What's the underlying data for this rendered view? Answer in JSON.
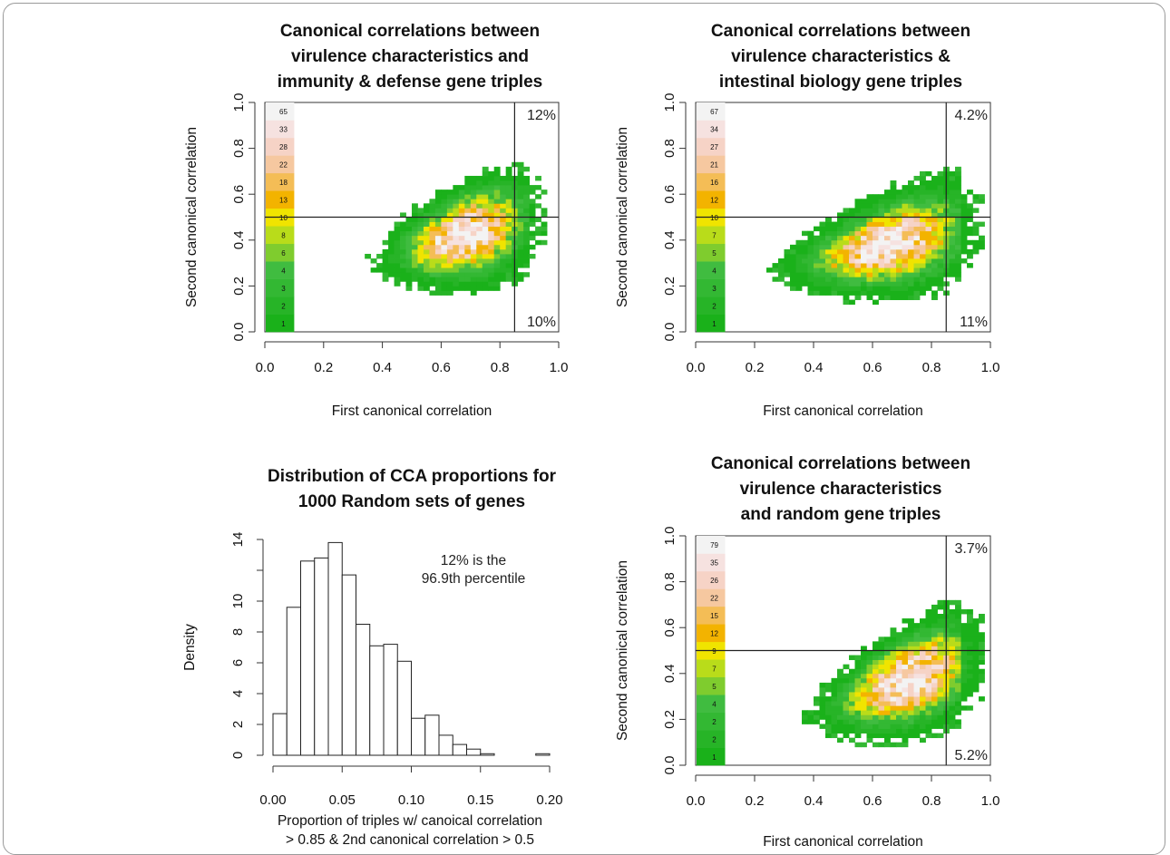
{
  "chart_data": [
    {
      "type": "heatmap",
      "title": [
        "Canonical correlations between",
        "virulence characteristics and",
        "immunity & defense gene triples"
      ],
      "xlabel": "First canonical correlation",
      "ylabel": "Second canonical correlation",
      "xlim": [
        0,
        1
      ],
      "ylim": [
        0,
        1
      ],
      "xticks": [
        "0.0",
        "0.2",
        "0.4",
        "0.6",
        "0.8",
        "1.0"
      ],
      "yticks": [
        "0.0",
        "0.2",
        "0.4",
        "0.6",
        "0.8",
        "1.0"
      ],
      "vline": 0.85,
      "hline": 0.5,
      "quadrant_upper_right": "12%",
      "quadrant_lower_right": "10%",
      "legend_counts": [
        "1",
        "2",
        "3",
        "4",
        "6",
        "8",
        "10",
        "13",
        "18",
        "22",
        "28",
        "33",
        "65"
      ],
      "density_center": [
        0.68,
        0.42
      ],
      "density_spread": [
        0.13,
        0.12
      ],
      "density_tilt": 0.35
    },
    {
      "type": "heatmap",
      "title": [
        "Canonical correlations between",
        "virulence characteristics &",
        "intestinal biology gene triples"
      ],
      "xlabel": "First canonical correlation",
      "ylabel": "Second canonical correlation",
      "xlim": [
        0,
        1
      ],
      "ylim": [
        0,
        1
      ],
      "xticks": [
        "0.0",
        "0.2",
        "0.4",
        "0.6",
        "0.8",
        "1.0"
      ],
      "yticks": [
        "0.0",
        "0.2",
        "0.4",
        "0.6",
        "0.8",
        "1.0"
      ],
      "vline": 0.85,
      "hline": 0.5,
      "quadrant_upper_right": "4.2%",
      "quadrant_lower_right": "11%",
      "legend_counts": [
        "1",
        "2",
        "3",
        "4",
        "5",
        "7",
        "10",
        "12",
        "16",
        "21",
        "27",
        "34",
        "67"
      ],
      "density_center": [
        0.65,
        0.38
      ],
      "density_spread": [
        0.16,
        0.12
      ],
      "density_tilt": 0.3
    },
    {
      "type": "bar",
      "title": [
        "Distribution of CCA proportions for",
        "1000 Random sets of genes"
      ],
      "xlabel": [
        "Proportion of triples w/ canoical correlation",
        "> 0.85 & 2nd canonical correlation > 0.5"
      ],
      "ylabel": "Density",
      "xlim": [
        0,
        0.2
      ],
      "ylim": [
        0,
        14
      ],
      "xticks": [
        "0.00",
        "0.05",
        "0.10",
        "0.15",
        "0.20"
      ],
      "yticks": [
        "0",
        "2",
        "4",
        "6",
        "8",
        "10",
        "14"
      ],
      "bin_width": 0.01,
      "bin_starts": [
        0.0,
        0.01,
        0.02,
        0.03,
        0.04,
        0.05,
        0.06,
        0.07,
        0.08,
        0.09,
        0.1,
        0.11,
        0.12,
        0.13,
        0.14,
        0.15,
        0.19
      ],
      "values": [
        2.7,
        9.6,
        12.6,
        12.8,
        13.8,
        11.7,
        8.5,
        7.1,
        7.2,
        6.1,
        2.4,
        2.6,
        1.3,
        0.7,
        0.4,
        0.1,
        0.1
      ],
      "annotation": [
        "12% is the",
        "96.9th percentile"
      ]
    },
    {
      "type": "heatmap",
      "title": [
        "Canonical correlations between",
        "virulence characteristics",
        "and random gene triples"
      ],
      "xlabel": "First canonical correlation",
      "ylabel": "Second canonical correlation",
      "xlim": [
        0,
        1
      ],
      "ylim": [
        0,
        1
      ],
      "xticks": [
        "0.0",
        "0.2",
        "0.4",
        "0.6",
        "0.8",
        "1.0"
      ],
      "yticks": [
        "0.0",
        "0.2",
        "0.4",
        "0.6",
        "0.8",
        "1.0"
      ],
      "vline": 0.85,
      "hline": 0.5,
      "quadrant_upper_right": "3.7%",
      "quadrant_lower_right": "5.2%",
      "legend_counts": [
        "1",
        "2",
        "2",
        "4",
        "5",
        "7",
        "9",
        "12",
        "15",
        "22",
        "26",
        "35",
        "79"
      ],
      "density_center": [
        0.72,
        0.37
      ],
      "density_spread": [
        0.14,
        0.12
      ],
      "density_tilt": 0.45
    }
  ],
  "colors": {
    "legend": [
      "#1ab11a",
      "#27b427",
      "#33b833",
      "#40bc40",
      "#7fcc2e",
      "#b9dc1a",
      "#f0e400",
      "#f3b300",
      "#f4bd56",
      "#f6c8a0",
      "#f6d3c6",
      "#f6e2e0",
      "#f3f3f3"
    ],
    "axis": "#333333",
    "bar_fill": "#ffffff"
  }
}
